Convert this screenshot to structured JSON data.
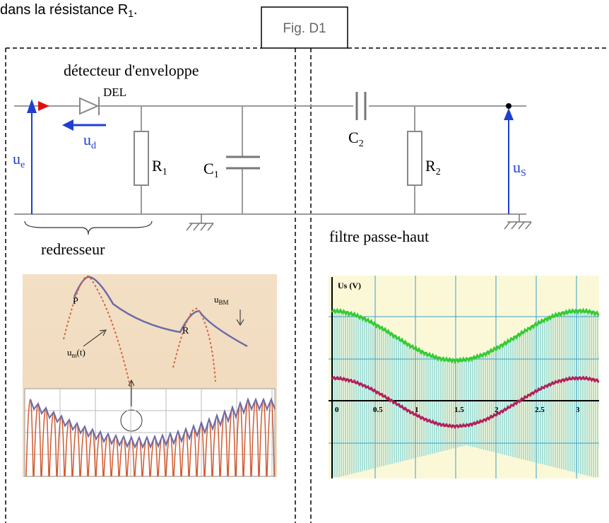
{
  "header": {
    "text": "dans la résistance R",
    "sub": "1",
    "end": "."
  },
  "figure_label": "Fig. D1",
  "circuit": {
    "title": "détecteur d'enveloppe",
    "diode": "DEL",
    "ud": {
      "text": "u",
      "sub": "d"
    },
    "ue": {
      "text": "u",
      "sub": "e"
    },
    "r1": {
      "text": "R",
      "sub": "1"
    },
    "c1": {
      "text": "C",
      "sub": "1"
    },
    "c2": {
      "text": "C",
      "sub": "2"
    },
    "r2": {
      "text": "R",
      "sub": "2"
    },
    "us": {
      "text": "u",
      "sub": "S"
    },
    "left_caption": "redresseur",
    "right_caption": "filtre passe-haut"
  },
  "left_plot": {
    "p": "P",
    "r": "R",
    "ubm": {
      "text": "u",
      "sub": "BM"
    },
    "um": {
      "text": "u",
      "sub": "m",
      "end": "(t)"
    }
  },
  "right_plot": {
    "y_label": "Us (V)",
    "x_tick_labels": [
      "0",
      "0.5",
      "1",
      "1.5",
      "2",
      "2.5",
      "3"
    ]
  }
}
